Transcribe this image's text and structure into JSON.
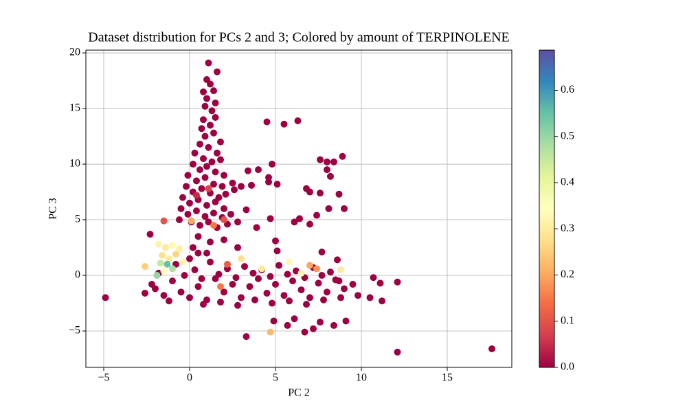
{
  "chart_data": {
    "type": "scatter",
    "title": "Dataset distribution for PCs 2 and 3; Colored by amount of TERPINOLENE",
    "x_label": "PC 2",
    "y_label": "PC 3",
    "xlim": [
      -6.04,
      18.76
    ],
    "ylim": [
      -8.27,
      20.25
    ],
    "xticks": [
      {
        "value": -5,
        "label": "−5"
      },
      0,
      5,
      10,
      15
    ],
    "yticks": [
      {
        "value": -5,
        "label": "−5"
      },
      0,
      5,
      10,
      15,
      20
    ],
    "grid": true,
    "colormap": [
      "#9e0142",
      "#d53e4f",
      "#f46d43",
      "#fdae61",
      "#fee08b",
      "#ffffbf",
      "#e6f598",
      "#abdda4",
      "#66c2a5",
      "#3288bd",
      "#5e4fa2"
    ],
    "clim": [
      0,
      0.687
    ],
    "cticks": [
      {
        "value": 0,
        "label": "0.0"
      },
      0.1,
      0.2,
      0.3,
      0.4,
      0.5,
      0.6
    ],
    "x": [
      1.1,
      1.6,
      1.0,
      1.2,
      0.8,
      1.4,
      1.0,
      1.5,
      0.9,
      1.3,
      0.8,
      1.5,
      0.7,
      1.2,
      0.9,
      1.4,
      0.6,
      1.1,
      1.6,
      0.3,
      0.8,
      1.3,
      1.8,
      0.2,
      0.6,
      1.0,
      1.5,
      2.0,
      -0.1,
      0.4,
      0.9,
      1.4,
      1.9,
      -0.2,
      0.2,
      0.7,
      1.2,
      1.7,
      2.1,
      -0.4,
      0.0,
      0.5,
      1.0,
      1.5,
      2.0,
      -0.5,
      -0.1,
      0.4,
      0.9,
      1.4,
      1.9,
      2.4,
      -0.6,
      0.1,
      0.6,
      1.1,
      1.6,
      2.2,
      2.8,
      3.3,
      2.6,
      3.0,
      2.5,
      1.8,
      0.5,
      1.2,
      2.0,
      2.8,
      0.2,
      1.0,
      -2.6,
      -2.0,
      -1.5,
      -1.0,
      -0.5,
      0.0,
      0.5,
      1.0,
      1.5,
      2.0,
      2.5,
      3.0,
      3.5,
      4.0,
      4.5,
      5.0,
      5.5,
      6.0,
      6.5,
      7.0,
      7.5,
      8.0,
      8.5,
      9.0,
      9.5,
      9.8,
      -1.8,
      -0.8,
      0.3,
      1.2,
      2.2,
      3.2,
      4.2,
      5.2,
      6.2,
      7.2,
      8.2,
      -2.2,
      -1.2,
      0.8,
      1.8,
      2.8,
      3.8,
      4.8,
      5.8,
      6.8,
      7.8,
      8.8,
      -0.3,
      0.7,
      1.7,
      2.7,
      3.7,
      4.7,
      5.7,
      6.7,
      7.7,
      8.7,
      0.0,
      0.5,
      -4.9,
      17.6,
      12.1,
      3.3,
      4.9,
      5.7,
      6.1,
      6.7,
      7.2,
      7.6,
      8.4,
      9.1,
      4.5,
      5.5,
      6.3,
      3.4,
      4.0,
      4.8,
      4.6,
      4.6,
      3.6,
      5.1,
      4.7,
      3.9,
      5.0,
      6.1,
      6.4,
      7.0,
      6.8,
      7.0,
      7.6,
      8.0,
      8.4,
      8.9,
      8.0,
      8.2,
      8.7,
      7.6,
      8.1,
      9.0,
      7.4,
      10.7,
      11.1,
      11.2,
      12.1,
      10.5,
      -2.3,
      7.7,
      8.6,
      5.1,
      -1.8,
      -1.4,
      -1.0,
      -0.6,
      -1.6,
      -1.2,
      -0.8,
      -1.7,
      -1.3,
      -1.0,
      -1.9,
      -1.5,
      -2.6,
      -0.4,
      3.0,
      4.2,
      5.8,
      7.0,
      8.8,
      6.5,
      4.7,
      1.8,
      -1.5,
      0.4,
      1.1,
      2.0,
      0.1,
      1.4,
      7.4,
      2.2
    ],
    "y": [
      19.1,
      18.3,
      17.6,
      17.2,
      16.5,
      16.6,
      15.9,
      15.5,
      15.2,
      14.8,
      14.0,
      14.2,
      13.2,
      13.5,
      12.5,
      12.8,
      11.8,
      11.5,
      11.0,
      11.0,
      10.5,
      10.2,
      10.4,
      10.0,
      9.5,
      9.8,
      9.3,
      9.0,
      9.0,
      8.5,
      8.8,
      8.2,
      8.0,
      8.0,
      7.5,
      7.8,
      7.4,
      7.0,
      7.3,
      7.0,
      6.5,
      6.8,
      6.3,
      6.6,
      6.0,
      6.0,
      5.5,
      5.8,
      5.3,
      5.6,
      5.2,
      5.5,
      5.0,
      4.8,
      4.5,
      4.8,
      4.3,
      4.6,
      4.8,
      5.9,
      7.7,
      8.0,
      8.3,
      12.0,
      3.5,
      3.0,
      3.2,
      2.5,
      2.5,
      2.0,
      -1.6,
      -1.2,
      -1.8,
      -0.5,
      -1.5,
      -2.0,
      -1.0,
      -2.2,
      -0.3,
      -1.5,
      -0.8,
      -2.0,
      -1.0,
      -0.3,
      -1.6,
      -0.8,
      -1.8,
      -0.5,
      -1.3,
      -2.0,
      -0.7,
      -1.5,
      -0.4,
      -1.2,
      -0.8,
      -1.8,
      0.2,
      1.0,
      0.5,
      1.2,
      0.6,
      0.8,
      0.5,
      0.9,
      0.4,
      0.7,
      0.3,
      -0.8,
      -2.3,
      -2.6,
      -2.4,
      -2.7,
      -2.2,
      -2.5,
      -2.3,
      -2.6,
      -2.2,
      -2.0,
      0.0,
      -0.3,
      0.1,
      -0.2,
      0.2,
      -0.1,
      0.1,
      -0.2,
      0.0,
      -0.5,
      1.5,
      2.0,
      -2.0,
      -6.6,
      -6.9,
      -5.5,
      -4.1,
      -4.5,
      -3.9,
      -5.1,
      -4.8,
      -4.2,
      -4.5,
      -4.1,
      13.8,
      13.6,
      13.9,
      9.4,
      9.5,
      10.0,
      8.8,
      8.4,
      8.1,
      8.2,
      5.1,
      4.3,
      3.1,
      4.8,
      5.1,
      4.6,
      7.8,
      7.5,
      10.4,
      10.2,
      10.2,
      10.7,
      9.5,
      8.9,
      7.3,
      7.4,
      6.0,
      6.0,
      5.4,
      -0.2,
      -0.7,
      -2.3,
      -0.6,
      -2.0,
      3.7,
      2.1,
      1.4,
      2.2,
      2.8,
      2.5,
      2.7,
      2.4,
      1.8,
      1.5,
      1.9,
      1.1,
      1.0,
      0.6,
      0.0,
      0.4,
      0.8,
      1.2,
      1.5,
      0.6,
      1.2,
      0.9,
      0.5,
      0.2,
      -5.1,
      -1.0,
      4.9,
      7.2,
      7.8,
      5.0,
      4.9,
      4.5,
      0.6,
      1.0
    ],
    "values": [
      0,
      0,
      0,
      0,
      0,
      0,
      0,
      0,
      0,
      0,
      0,
      0,
      0,
      0,
      0,
      0,
      0,
      0,
      0,
      0,
      0,
      0,
      0,
      0,
      0,
      0,
      0,
      0,
      0,
      0,
      0,
      0,
      0,
      0,
      0,
      0,
      0,
      0,
      0,
      0,
      0,
      0,
      0,
      0,
      0,
      0,
      0,
      0,
      0,
      0,
      0,
      0,
      0,
      0,
      0,
      0,
      0,
      0,
      0,
      0,
      0,
      0,
      0,
      0,
      0,
      0,
      0,
      0,
      0,
      0,
      0,
      0,
      0,
      0,
      0,
      0,
      0,
      0,
      0,
      0,
      0,
      0,
      0,
      0,
      0,
      0,
      0,
      0,
      0,
      0,
      0,
      0,
      0,
      0,
      0,
      0,
      0,
      0,
      0,
      0,
      0,
      0,
      0,
      0,
      0,
      0,
      0,
      0,
      0,
      0,
      0,
      0,
      0,
      0,
      0,
      0,
      0,
      0,
      0,
      0,
      0,
      0,
      0,
      0,
      0,
      0,
      0,
      0,
      0,
      0,
      0,
      0,
      0,
      0,
      0,
      0,
      0,
      0,
      0,
      0,
      0,
      0,
      0,
      0,
      0,
      0,
      0,
      0,
      0,
      0,
      0,
      0,
      0,
      0,
      0,
      0,
      0,
      0,
      0,
      0,
      0,
      0,
      0,
      0,
      0,
      0,
      0,
      0,
      0,
      0,
      0,
      0,
      0,
      0,
      0,
      0,
      0,
      0,
      0,
      0,
      0.32,
      0.3,
      0.33,
      0.31,
      0.28,
      0.3,
      0.26,
      0.45,
      0.55,
      0.48,
      0.5,
      0.35,
      0.25,
      0.32,
      0.28,
      0.3,
      0.33,
      0.2,
      0.3,
      0.32,
      0.22,
      0.15,
      0.1,
      0.05,
      0.08,
      0.1,
      0.2,
      0.15,
      0.18,
      0.12
    ]
  }
}
